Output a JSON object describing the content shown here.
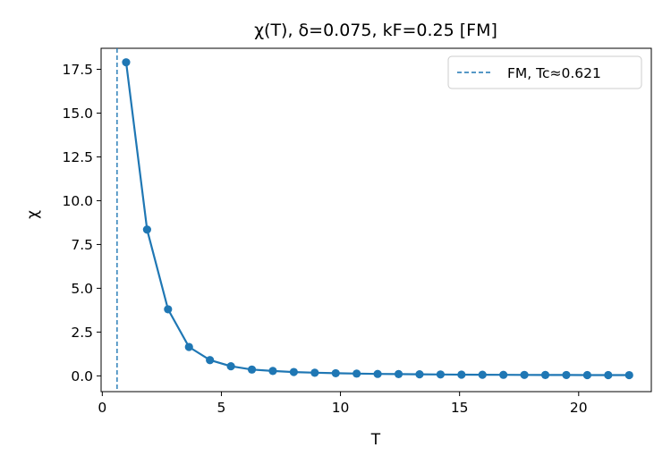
{
  "chart_data": {
    "type": "line",
    "title": "χ(T), δ=0.075, kF=0.25  [FM]",
    "xlabel": "T",
    "ylabel": "χ",
    "xlim": [
      -0.05,
      23.05
    ],
    "ylim": [
      -0.9,
      18.7
    ],
    "xticks": [
      0,
      5,
      10,
      15,
      20
    ],
    "xtick_labels": [
      "0",
      "5",
      "10",
      "15",
      "20"
    ],
    "yticks": [
      0.0,
      2.5,
      5.0,
      7.5,
      10.0,
      12.5,
      15.0,
      17.5
    ],
    "ytick_labels": [
      "0.0",
      "2.5",
      "5.0",
      "7.5",
      "10.0",
      "12.5",
      "15.0",
      "17.5"
    ],
    "grid": false,
    "legend_position": "top-right",
    "series": [
      {
        "x": [
          1.0,
          1.88,
          2.76,
          3.64,
          4.52,
          5.4,
          6.28,
          7.16,
          8.04,
          8.92,
          9.8,
          10.68,
          11.56,
          12.44,
          13.32,
          14.2,
          15.08,
          15.96,
          16.84,
          17.72,
          18.6,
          19.48,
          20.36,
          21.24,
          22.12
        ],
        "values": [
          17.9,
          8.35,
          3.8,
          1.65,
          0.9,
          0.55,
          0.36,
          0.28,
          0.22,
          0.18,
          0.15,
          0.13,
          0.11,
          0.1,
          0.09,
          0.08,
          0.07,
          0.065,
          0.06,
          0.055,
          0.05,
          0.048,
          0.046,
          0.044,
          0.042
        ],
        "color": "#1f77b4"
      }
    ],
    "vlines": [
      {
        "x": 0.621,
        "label": "FM, Tc≈0.621",
        "color": "#1f77b4",
        "style": "dashed"
      }
    ]
  }
}
